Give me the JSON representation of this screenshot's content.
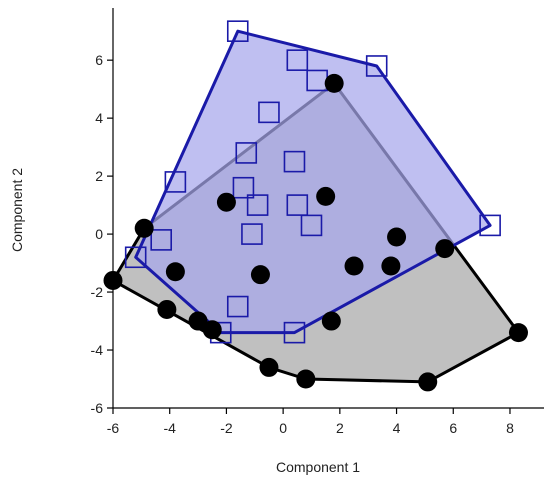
{
  "chart_data": {
    "type": "scatter",
    "xlabel": "Component 1",
    "ylabel": "Component 2",
    "xlim": [
      -6,
      9.2
    ],
    "ylim": [
      -6,
      7.8
    ],
    "xticks": [
      -6,
      -4,
      -2,
      0,
      2,
      4,
      6,
      8
    ],
    "yticks": [
      -6,
      -4,
      -2,
      0,
      2,
      4,
      6
    ],
    "grid": false,
    "series": [
      {
        "marker": "open-square",
        "color": "#1a1aa8",
        "hull_fill": "#a6a6ec",
        "points": [
          [
            -1.6,
            7.0
          ],
          [
            0.5,
            6.0
          ],
          [
            1.2,
            5.3
          ],
          [
            3.3,
            5.8
          ],
          [
            -0.5,
            4.2
          ],
          [
            -1.3,
            2.8
          ],
          [
            0.4,
            2.5
          ],
          [
            -3.8,
            1.8
          ],
          [
            -1.4,
            1.6
          ],
          [
            -0.9,
            1.0
          ],
          [
            0.5,
            1.0
          ],
          [
            1.0,
            0.3
          ],
          [
            -1.1,
            0.0
          ],
          [
            -4.3,
            -0.2
          ],
          [
            -5.2,
            -0.8
          ],
          [
            7.3,
            0.3
          ],
          [
            -1.6,
            -2.5
          ],
          [
            -2.2,
            -3.4
          ],
          [
            0.4,
            -3.4
          ]
        ]
      },
      {
        "marker": "filled-circle",
        "color": "#000000",
        "hull_fill": "#c0c0c0",
        "points": [
          [
            1.8,
            5.2
          ],
          [
            -2.0,
            1.1
          ],
          [
            1.5,
            1.3
          ],
          [
            -4.9,
            0.2
          ],
          [
            4.0,
            -0.1
          ],
          [
            5.7,
            -0.5
          ],
          [
            2.5,
            -1.1
          ],
          [
            3.8,
            -1.1
          ],
          [
            -3.8,
            -1.3
          ],
          [
            -0.8,
            -1.4
          ],
          [
            -6.0,
            -1.6
          ],
          [
            -4.1,
            -2.6
          ],
          [
            -3.0,
            -3.0
          ],
          [
            -2.5,
            -3.3
          ],
          [
            1.7,
            -3.0
          ],
          [
            8.3,
            -3.4
          ],
          [
            -0.5,
            -4.6
          ],
          [
            0.8,
            -5.0
          ],
          [
            5.1,
            -5.1
          ]
        ]
      }
    ]
  }
}
